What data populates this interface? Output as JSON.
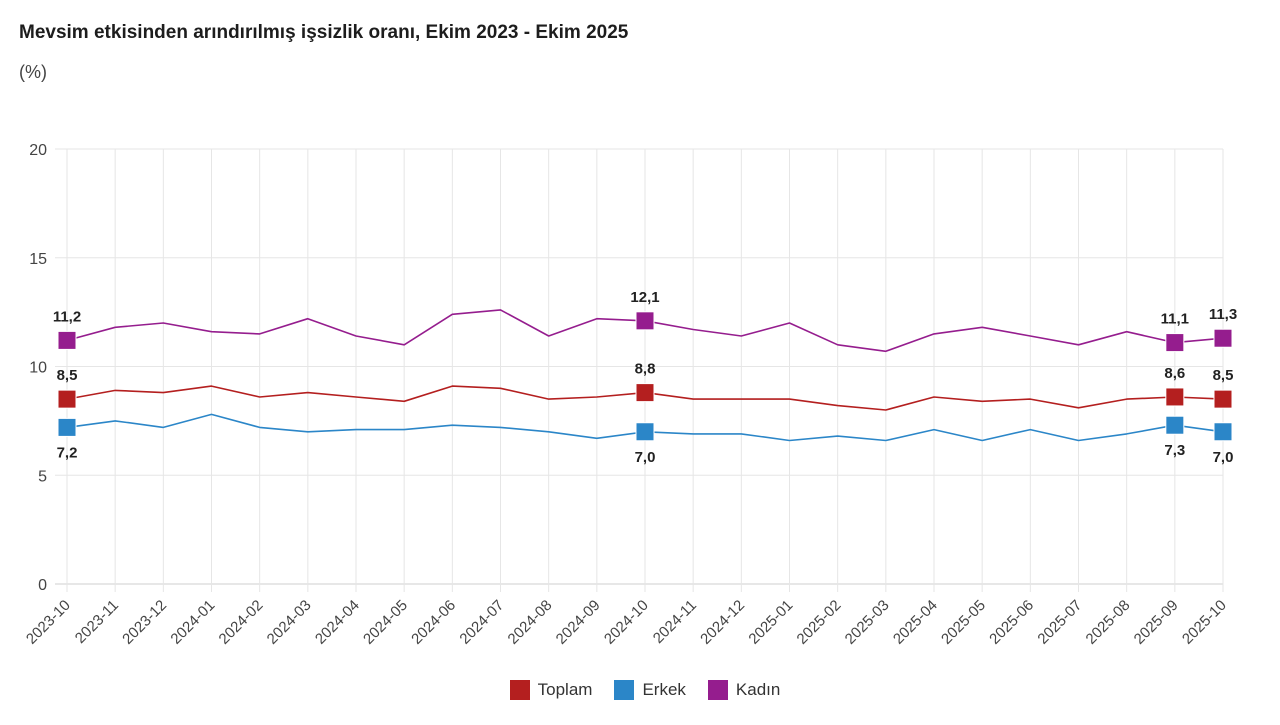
{
  "header": {
    "title": "Mevsim etkisinden arındırılmış işsizlik oranı, Ekim 2023 - Ekim 2025",
    "unit": "(%)"
  },
  "chart_data": {
    "type": "line",
    "title": "Mevsim etkisinden arındırılmış işsizlik oranı, Ekim 2023 - Ekim 2025",
    "subtitle": "(%)",
    "xlabel": "",
    "ylabel": "",
    "ylim": [
      0,
      20
    ],
    "yticks": [
      0,
      5,
      10,
      15,
      20
    ],
    "grid": true,
    "legend_position": "bottom",
    "x": [
      "2023-10",
      "2023-11",
      "2023-12",
      "2024-01",
      "2024-02",
      "2024-03",
      "2024-04",
      "2024-05",
      "2024-06",
      "2024-07",
      "2024-08",
      "2024-09",
      "2024-10",
      "2024-11",
      "2024-12",
      "2025-01",
      "2025-02",
      "2025-03",
      "2025-04",
      "2025-05",
      "2025-06",
      "2025-07",
      "2025-08",
      "2025-09",
      "2025-10"
    ],
    "series": [
      {
        "name": "Toplam",
        "color": "#b41f1f",
        "values": [
          8.5,
          8.9,
          8.8,
          9.1,
          8.6,
          8.8,
          8.6,
          8.4,
          9.1,
          9.0,
          8.5,
          8.6,
          8.8,
          8.5,
          8.5,
          8.5,
          8.2,
          8.0,
          8.6,
          8.4,
          8.5,
          8.1,
          8.5,
          8.6,
          8.5
        ],
        "label_position": "above"
      },
      {
        "name": "Erkek",
        "color": "#2b86c8",
        "values": [
          7.2,
          7.5,
          7.2,
          7.8,
          7.2,
          7.0,
          7.1,
          7.1,
          7.3,
          7.2,
          7.0,
          6.7,
          7.0,
          6.9,
          6.9,
          6.6,
          6.8,
          6.6,
          7.1,
          6.6,
          7.1,
          6.6,
          6.9,
          7.3,
          7.0
        ],
        "label_position": "below"
      },
      {
        "name": "Kadın",
        "color": "#951d8e",
        "values": [
          11.2,
          11.8,
          12.0,
          11.6,
          11.5,
          12.2,
          11.4,
          11.0,
          12.4,
          12.6,
          11.4,
          12.2,
          12.1,
          11.7,
          11.4,
          12.0,
          11.0,
          10.7,
          11.5,
          11.8,
          11.4,
          11.0,
          11.6,
          11.1,
          11.3
        ],
        "label_position": "above"
      }
    ],
    "highlighted_points": [
      "2023-10",
      "2024-10",
      "2025-09",
      "2025-10"
    ],
    "data_labels": {
      "Toplam": {
        "2023-10": "8,5",
        "2024-10": "8,8",
        "2025-09": "8,6",
        "2025-10": "8,5"
      },
      "Erkek": {
        "2023-10": "7,2",
        "2024-10": "7,0",
        "2025-09": "7,3",
        "2025-10": "7,0"
      },
      "Kadın": {
        "2023-10": "11,2",
        "2024-10": "12,1",
        "2025-09": "11,1",
        "2025-10": "11,3"
      }
    }
  },
  "legend": [
    {
      "label": "Toplam",
      "color": "#b41f1f"
    },
    {
      "label": "Erkek",
      "color": "#2b86c8"
    },
    {
      "label": "Kadın",
      "color": "#951d8e"
    }
  ]
}
